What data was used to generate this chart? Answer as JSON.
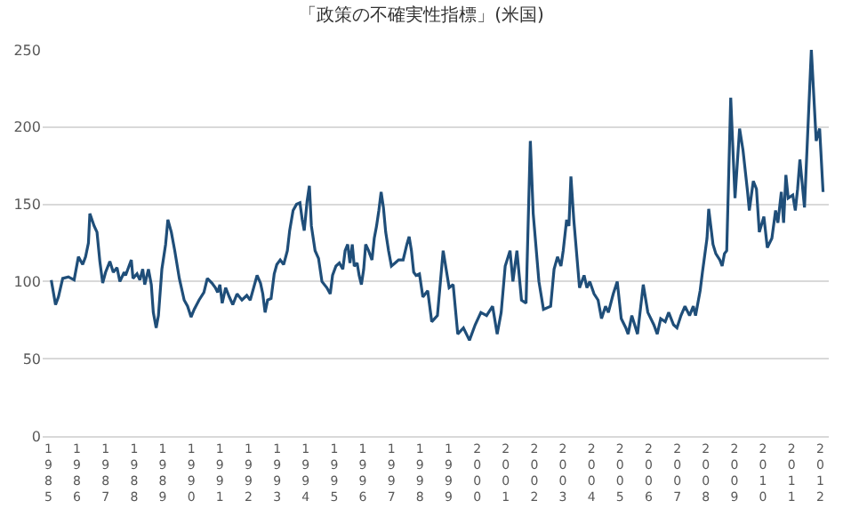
{
  "chart_data": {
    "type": "line",
    "title": "「政策の不確実性指標」(米国)",
    "x": [
      1985.1,
      1985.25,
      1985.35,
      1985.5,
      1985.7,
      1985.9,
      1986.05,
      1986.2,
      1986.3,
      1986.4,
      1986.45,
      1986.6,
      1986.7,
      1986.8,
      1986.9,
      1987.0,
      1987.15,
      1987.27,
      1987.4,
      1987.5,
      1987.65,
      1987.7,
      1987.9,
      1987.96,
      1988.1,
      1988.2,
      1988.3,
      1988.37,
      1988.5,
      1988.6,
      1988.67,
      1988.77,
      1988.85,
      1988.97,
      1989.1,
      1989.18,
      1989.3,
      1989.42,
      1989.58,
      1989.75,
      1989.87,
      1989.99,
      1990.1,
      1990.27,
      1990.44,
      1990.56,
      1990.72,
      1990.84,
      1990.92,
      1991.0,
      1991.08,
      1991.2,
      1991.33,
      1991.45,
      1991.6,
      1991.77,
      1991.94,
      1992.06,
      1992.18,
      1992.3,
      1992.42,
      1992.5,
      1992.58,
      1992.67,
      1992.79,
      1992.9,
      1992.99,
      1993.11,
      1993.23,
      1993.36,
      1993.44,
      1993.56,
      1993.68,
      1993.8,
      1993.88,
      1993.95,
      1994.05,
      1994.13,
      1994.2,
      1994.33,
      1994.45,
      1994.57,
      1994.74,
      1994.86,
      1994.94,
      1995.06,
      1995.18,
      1995.3,
      1995.38,
      1995.47,
      1995.55,
      1995.63,
      1995.7,
      1995.8,
      1995.87,
      1995.95,
      1996.03,
      1996.1,
      1996.2,
      1996.32,
      1996.4,
      1996.48,
      1996.56,
      1996.64,
      1996.72,
      1996.8,
      1996.9,
      1997.0,
      1997.13,
      1997.25,
      1997.41,
      1997.54,
      1997.62,
      1997.7,
      1997.78,
      1997.86,
      1997.98,
      1998.1,
      1998.27,
      1998.41,
      1998.61,
      1998.81,
      1999.02,
      1999.16,
      1999.32,
      1999.52,
      1999.73,
      1999.93,
      2000.13,
      2000.33,
      2000.54,
      2000.7,
      2000.84,
      2000.98,
      2001.15,
      2001.25,
      2001.39,
      2001.55,
      2001.71,
      2001.86,
      2001.96,
      2002.16,
      2002.32,
      2002.57,
      2002.69,
      2002.81,
      2002.93,
      2003.01,
      2003.13,
      2003.21,
      2003.28,
      2003.38,
      2003.58,
      2003.74,
      2003.84,
      2003.94,
      2004.09,
      2004.23,
      2004.35,
      2004.49,
      2004.59,
      2004.76,
      2004.9,
      2005.04,
      2005.2,
      2005.28,
      2005.41,
      2005.61,
      2005.81,
      2005.97,
      2006.18,
      2006.3,
      2006.42,
      2006.58,
      2006.7,
      2006.87,
      2006.99,
      2007.13,
      2007.27,
      2007.43,
      2007.56,
      2007.64,
      2007.8,
      2007.88,
      2008.04,
      2008.1,
      2008.25,
      2008.35,
      2008.49,
      2008.57,
      2008.65,
      2008.73,
      2008.87,
      2009.02,
      2009.18,
      2009.3,
      2009.46,
      2009.52,
      2009.66,
      2009.77,
      2009.87,
      2010.03,
      2010.15,
      2010.31,
      2010.44,
      2010.52,
      2010.64,
      2010.72,
      2010.8,
      2010.88,
      2011.04,
      2011.13,
      2011.21,
      2011.29,
      2011.45,
      2011.69,
      2011.86,
      2011.98,
      2012.1
    ],
    "series": [
      {
        "color": "#1f4e79",
        "values": [
          101,
          85,
          90,
          102,
          103,
          101,
          116,
          111,
          116,
          125,
          144,
          136,
          132,
          113,
          99,
          106,
          113,
          106,
          109,
          100,
          106,
          104,
          114,
          102,
          105,
          101,
          108,
          98,
          108,
          98,
          80,
          70,
          78,
          108,
          124,
          140,
          132,
          120,
          102,
          88,
          84,
          77,
          82,
          88,
          93,
          102,
          99,
          96,
          93,
          98,
          86,
          96,
          90,
          85,
          92,
          88,
          91,
          88,
          96,
          104,
          99,
          92,
          80,
          88,
          89,
          105,
          111,
          114,
          111,
          120,
          133,
          146,
          150,
          151,
          140,
          133,
          152,
          162,
          136,
          120,
          115,
          100,
          96,
          92,
          104,
          110,
          112,
          108,
          120,
          124,
          112,
          124,
          110,
          112,
          104,
          98,
          108,
          124,
          120,
          114,
          128,
          136,
          146,
          158,
          148,
          132,
          120,
          110,
          112,
          114,
          114,
          124,
          129,
          120,
          106,
          104,
          105,
          90,
          94,
          74,
          78,
          120,
          96,
          98,
          66,
          70,
          62,
          72,
          80,
          78,
          84,
          66,
          80,
          110,
          120,
          100,
          120,
          88,
          86,
          191,
          144,
          100,
          82,
          84,
          108,
          116,
          110,
          120,
          140,
          136,
          168,
          140,
          96,
          104,
          96,
          100,
          92,
          88,
          76,
          84,
          80,
          92,
          100,
          76,
          70,
          66,
          78,
          66,
          98,
          80,
          72,
          66,
          76,
          74,
          80,
          72,
          70,
          78,
          84,
          78,
          84,
          78,
          94,
          106,
          128,
          147,
          124,
          118,
          114,
          110,
          118,
          120,
          219,
          154,
          199,
          185,
          158,
          146,
          165,
          160,
          132,
          142,
          122,
          128,
          146,
          138,
          158,
          138,
          169,
          154,
          156,
          146,
          160,
          179,
          148,
          250,
          191,
          199,
          158
        ]
      }
    ],
    "ylim": [
      0,
      250
    ],
    "yticks": [
      0,
      50,
      100,
      150,
      200,
      250
    ],
    "xlim": [
      1984.8,
      2012.3
    ],
    "xticks": [
      1985,
      1986,
      1987,
      1988,
      1989,
      1990,
      1991,
      1992,
      1993,
      1994,
      1995,
      1996,
      1997,
      1998,
      1999,
      2000,
      2001,
      2002,
      2003,
      2004,
      2005,
      2006,
      2007,
      2008,
      2009,
      2010,
      2011,
      2012
    ],
    "grid": "y"
  }
}
